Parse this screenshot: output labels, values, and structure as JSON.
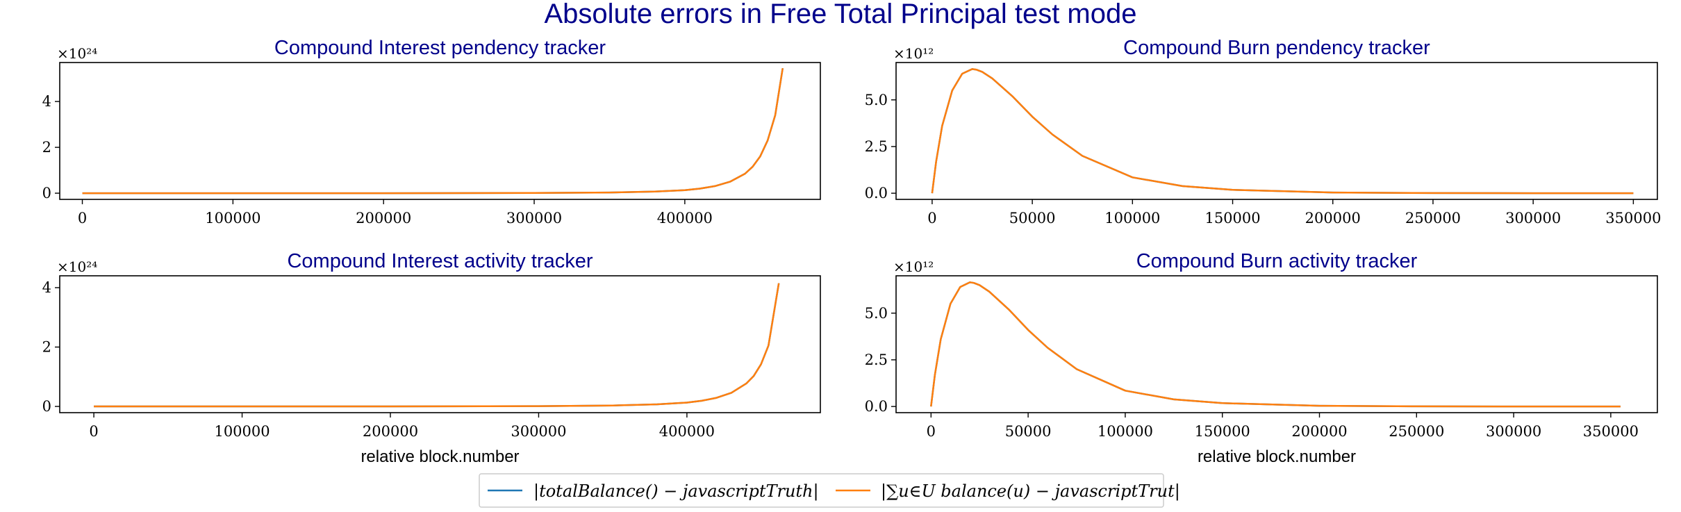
{
  "figure": {
    "suptitle": "Absolute errors in Free Total Principal test mode"
  },
  "colors": {
    "title": "#00008b",
    "series_1": "#1f77b4",
    "series_2": "#ff7f0e"
  },
  "legend": {
    "placement": "bottom-center",
    "entries": [
      {
        "label": "|totalBalance() − javascriptTruth|",
        "color": "#1f77b4"
      },
      {
        "label": "|∑u∈U balance(u) − javascriptTrut|",
        "color": "#ff7f0e"
      }
    ]
  },
  "chart_data": [
    {
      "type": "line",
      "title": "Compound Interest pendency tracker",
      "xlabel": "",
      "ylabel": "",
      "y_offset_label": "×10²⁴",
      "xlim": [
        -15000,
        490000
      ],
      "ylim": [
        -0.27,
        5.7
      ],
      "xticks": [
        0,
        100000,
        200000,
        300000,
        400000
      ],
      "xtick_labels": [
        "0",
        "100000",
        "200000",
        "300000",
        "400000"
      ],
      "yticks": [
        0,
        2,
        4
      ],
      "ytick_labels": [
        "0",
        "2",
        "4"
      ],
      "grid": false,
      "series": [
        {
          "color": "#1f77b4",
          "x": [
            0,
            100000,
            200000,
            300000,
            350000,
            380000,
            400000,
            410000,
            420000,
            430000,
            440000,
            445000,
            450000,
            455000,
            460000,
            465000
          ],
          "y": [
            0,
            0,
            0,
            0.01,
            0.03,
            0.07,
            0.13,
            0.2,
            0.31,
            0.5,
            0.85,
            1.15,
            1.6,
            2.3,
            3.4,
            5.45
          ]
        },
        {
          "color": "#ff7f0e",
          "x": [
            0,
            100000,
            200000,
            300000,
            350000,
            380000,
            400000,
            410000,
            420000,
            430000,
            440000,
            445000,
            450000,
            455000,
            460000,
            465000
          ],
          "y": [
            0,
            0,
            0,
            0.01,
            0.03,
            0.07,
            0.13,
            0.2,
            0.31,
            0.5,
            0.85,
            1.15,
            1.6,
            2.3,
            3.4,
            5.45
          ]
        }
      ]
    },
    {
      "type": "line",
      "title": "Compound Burn pendency tracker",
      "xlabel": "",
      "ylabel": "",
      "y_offset_label": "×10¹²",
      "xlim": [
        -18000,
        362000
      ],
      "ylim": [
        -0.33,
        7.0
      ],
      "xticks": [
        0,
        50000,
        100000,
        150000,
        200000,
        250000,
        300000,
        350000
      ],
      "xtick_labels": [
        "0",
        "50000",
        "100000",
        "150000",
        "200000",
        "250000",
        "300000",
        "350000"
      ],
      "yticks": [
        0,
        2.5,
        5.0
      ],
      "ytick_labels": [
        "0.0",
        "2.5",
        "5.0"
      ],
      "grid": false,
      "series": [
        {
          "color": "#1f77b4",
          "x": [
            0,
            2000,
            5000,
            10000,
            15000,
            20000,
            22000,
            25000,
            30000,
            40000,
            50000,
            60000,
            75000,
            100000,
            125000,
            150000,
            200000,
            250000,
            300000,
            350000
          ],
          "y": [
            0,
            1.7,
            3.6,
            5.5,
            6.4,
            6.65,
            6.62,
            6.5,
            6.15,
            5.2,
            4.1,
            3.15,
            2.0,
            0.85,
            0.38,
            0.18,
            0.04,
            0.01,
            0,
            0
          ]
        },
        {
          "color": "#ff7f0e",
          "x": [
            0,
            2000,
            5000,
            10000,
            15000,
            20000,
            22000,
            25000,
            30000,
            40000,
            50000,
            60000,
            75000,
            100000,
            125000,
            150000,
            200000,
            250000,
            300000,
            350000
          ],
          "y": [
            0,
            1.7,
            3.6,
            5.5,
            6.4,
            6.65,
            6.62,
            6.5,
            6.15,
            5.2,
            4.1,
            3.15,
            2.0,
            0.85,
            0.38,
            0.18,
            0.04,
            0.01,
            0,
            0
          ]
        }
      ]
    },
    {
      "type": "line",
      "title": "Compound Interest activity tracker",
      "xlabel": "relative block.number",
      "ylabel": "",
      "y_offset_label": "×10²⁴",
      "xlim": [
        -23000,
        490000
      ],
      "ylim": [
        -0.21,
        4.4
      ],
      "xticks": [
        0,
        100000,
        200000,
        300000,
        400000
      ],
      "xtick_labels": [
        "0",
        "100000",
        "200000",
        "300000",
        "400000"
      ],
      "yticks": [
        0,
        2,
        4
      ],
      "ytick_labels": [
        "0",
        "2",
        "4"
      ],
      "grid": false,
      "series": [
        {
          "color": "#1f77b4",
          "x": [
            0,
            100000,
            200000,
            300000,
            350000,
            380000,
            400000,
            410000,
            420000,
            430000,
            440000,
            445000,
            450000,
            455000,
            462000
          ],
          "y": [
            0,
            0,
            0,
            0.01,
            0.03,
            0.07,
            0.13,
            0.19,
            0.29,
            0.46,
            0.77,
            1.02,
            1.42,
            2.05,
            4.15
          ]
        },
        {
          "color": "#ff7f0e",
          "x": [
            0,
            100000,
            200000,
            300000,
            350000,
            380000,
            400000,
            410000,
            420000,
            430000,
            440000,
            445000,
            450000,
            455000,
            462000
          ],
          "y": [
            0,
            0,
            0,
            0.01,
            0.03,
            0.07,
            0.13,
            0.19,
            0.29,
            0.46,
            0.77,
            1.02,
            1.42,
            2.05,
            4.15
          ]
        }
      ]
    },
    {
      "type": "line",
      "title": "Compound Burn activity tracker",
      "xlabel": "relative block.number",
      "ylabel": "",
      "y_offset_label": "×10¹²",
      "xlim": [
        -18000,
        374000
      ],
      "ylim": [
        -0.33,
        7.0
      ],
      "xticks": [
        0,
        50000,
        100000,
        150000,
        200000,
        250000,
        300000,
        350000
      ],
      "xtick_labels": [
        "0",
        "50000",
        "100000",
        "150000",
        "200000",
        "250000",
        "300000",
        "350000"
      ],
      "yticks": [
        0,
        2.5,
        5.0
      ],
      "ytick_labels": [
        "0.0",
        "2.5",
        "5.0"
      ],
      "grid": false,
      "series": [
        {
          "color": "#1f77b4",
          "x": [
            0,
            2000,
            5000,
            10000,
            15000,
            20000,
            22000,
            25000,
            30000,
            40000,
            50000,
            60000,
            75000,
            100000,
            125000,
            150000,
            200000,
            250000,
            300000,
            355000
          ],
          "y": [
            0,
            1.7,
            3.6,
            5.5,
            6.4,
            6.65,
            6.62,
            6.5,
            6.15,
            5.2,
            4.1,
            3.15,
            2.0,
            0.85,
            0.38,
            0.18,
            0.04,
            0.01,
            0,
            0
          ]
        },
        {
          "color": "#ff7f0e",
          "x": [
            0,
            2000,
            5000,
            10000,
            15000,
            20000,
            22000,
            25000,
            30000,
            40000,
            50000,
            60000,
            75000,
            100000,
            125000,
            150000,
            200000,
            250000,
            300000,
            355000
          ],
          "y": [
            0,
            1.7,
            3.6,
            5.5,
            6.4,
            6.65,
            6.62,
            6.5,
            6.15,
            5.2,
            4.1,
            3.15,
            2.0,
            0.85,
            0.38,
            0.18,
            0.04,
            0.01,
            0,
            0
          ]
        }
      ]
    }
  ]
}
